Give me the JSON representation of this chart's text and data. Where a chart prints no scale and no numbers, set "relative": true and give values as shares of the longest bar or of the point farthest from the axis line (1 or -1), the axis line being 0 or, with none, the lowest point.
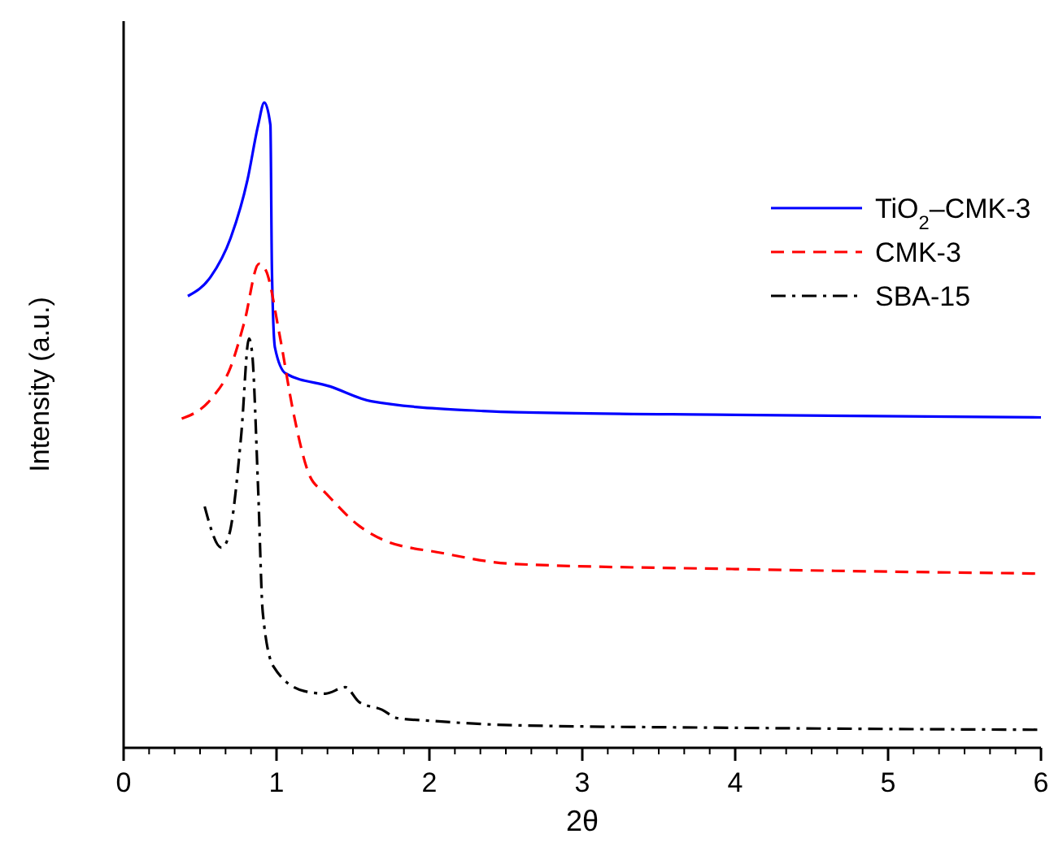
{
  "chart_data": {
    "type": "line",
    "xlabel": "2θ",
    "ylabel": "Intensity (a.u.)",
    "relative": true,
    "xlim": [
      0,
      6
    ],
    "xticks": [
      0,
      1,
      2,
      3,
      4,
      5,
      6
    ],
    "legend": "top right",
    "grid": false,
    "marker": "none",
    "series": [
      {
        "name": "TiO$_{2}$–CMK-3",
        "color": "#0000ff",
        "line_style": "solid",
        "x": [
          0.42,
          0.57,
          0.7,
          0.81,
          0.88,
          0.92,
          0.96,
          0.97,
          0.99,
          1.06,
          1.35,
          1.62,
          2.35,
          2.57,
          4.0,
          6.0
        ],
        "values": [
          0.7,
          0.73,
          0.79,
          0.88,
          0.965,
          1.0,
          0.965,
          0.74,
          0.62,
          0.58,
          0.56,
          0.537,
          0.522,
          0.52,
          0.516,
          0.512
        ]
      },
      {
        "name": "CMK-3",
        "color": "#ff0000",
        "line_style": "dashed",
        "x": [
          0.38,
          0.57,
          0.7,
          0.79,
          0.885,
          0.93,
          1.02,
          1.11,
          1.22,
          1.32,
          1.54,
          1.69,
          2.08,
          2.55,
          4.0,
          6.0
        ],
        "values": [
          0.51,
          0.54,
          0.59,
          0.66,
          0.75,
          0.74,
          0.64,
          0.52,
          0.42,
          0.395,
          0.344,
          0.323,
          0.302,
          0.285,
          0.277,
          0.27
        ]
      },
      {
        "name": "SBA-15",
        "color": "#000000",
        "line_style": "dashdot",
        "x": [
          0.53,
          0.64,
          0.69,
          0.77,
          0.82,
          0.84,
          0.88,
          0.91,
          0.98,
          1.18,
          1.32,
          1.45,
          1.54,
          1.69,
          1.79,
          2.0,
          2.55,
          4.0,
          6.0
        ],
        "values": [
          0.374,
          0.31,
          0.33,
          0.487,
          0.634,
          0.613,
          0.4,
          0.21,
          0.126,
          0.088,
          0.084,
          0.094,
          0.071,
          0.059,
          0.046,
          0.042,
          0.035,
          0.031,
          0.028
        ]
      }
    ]
  }
}
